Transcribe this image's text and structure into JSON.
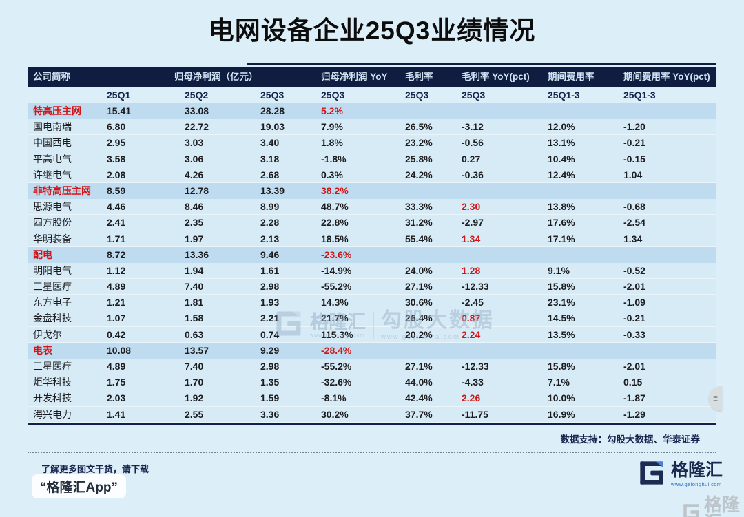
{
  "chart_data": {
    "type": "table",
    "title": "电网设备企业25Q3业绩情况",
    "group_headers": [
      "公司简称",
      "归母净利润（亿元）",
      "归母净利润 YoY",
      "毛利率",
      "毛利率 YoY(pct)",
      "期间费用率",
      "期间费用率 YoY(pct)"
    ],
    "sub_headers": [
      "25Q1",
      "25Q2",
      "25Q3",
      "25Q3",
      "25Q3",
      "25Q3",
      "25Q1-3",
      "25Q1-3"
    ],
    "rows": [
      {
        "name": "特高压主网",
        "section": true,
        "cells": [
          "15.41",
          "33.08",
          "28.28",
          "5.2%",
          "",
          "",
          "",
          ""
        ],
        "red": [
          3
        ]
      },
      {
        "name": "国电南瑞",
        "section": false,
        "cells": [
          "6.80",
          "22.72",
          "19.03",
          "7.9%",
          "26.5%",
          "-3.12",
          "12.0%",
          "-1.20"
        ],
        "red": []
      },
      {
        "name": "中国西电",
        "section": false,
        "cells": [
          "2.95",
          "3.03",
          "3.40",
          "1.8%",
          "23.2%",
          "-0.56",
          "13.1%",
          "-0.21"
        ],
        "red": []
      },
      {
        "name": "平高电气",
        "section": false,
        "cells": [
          "3.58",
          "3.06",
          "3.18",
          "-1.8%",
          "25.8%",
          "0.27",
          "10.4%",
          "-0.15"
        ],
        "red": []
      },
      {
        "name": "许继电气",
        "section": false,
        "cells": [
          "2.08",
          "4.26",
          "2.68",
          "0.3%",
          "24.2%",
          "-0.36",
          "12.4%",
          "1.04"
        ],
        "red": []
      },
      {
        "name": "非特高压主网",
        "section": true,
        "cells": [
          "8.59",
          "12.78",
          "13.39",
          "38.2%",
          "",
          "",
          "",
          ""
        ],
        "red": [
          3
        ]
      },
      {
        "name": "思源电气",
        "section": false,
        "cells": [
          "4.46",
          "8.46",
          "8.99",
          "48.7%",
          "33.3%",
          "2.30",
          "13.8%",
          "-0.68"
        ],
        "red": [
          5
        ]
      },
      {
        "name": "四方股份",
        "section": false,
        "cells": [
          "2.41",
          "2.35",
          "2.28",
          "22.8%",
          "31.2%",
          "-2.97",
          "17.6%",
          "-2.54"
        ],
        "red": []
      },
      {
        "name": "华明装备",
        "section": false,
        "cells": [
          "1.71",
          "1.97",
          "2.13",
          "18.5%",
          "55.4%",
          "1.34",
          "17.1%",
          "1.34"
        ],
        "red": [
          5
        ]
      },
      {
        "name": "配电",
        "section": true,
        "cells": [
          "8.72",
          "13.36",
          "9.46",
          "-23.6%",
          "",
          "",
          "",
          ""
        ],
        "red": [
          3
        ]
      },
      {
        "name": "明阳电气",
        "section": false,
        "cells": [
          "1.12",
          "1.94",
          "1.61",
          "-14.9%",
          "24.0%",
          "1.28",
          "9.1%",
          "-0.52"
        ],
        "red": [
          5
        ]
      },
      {
        "name": "三星医疗",
        "section": false,
        "cells": [
          "4.89",
          "7.40",
          "2.98",
          "-55.2%",
          "27.1%",
          "-12.33",
          "15.8%",
          "-2.01"
        ],
        "red": []
      },
      {
        "name": "东方电子",
        "section": false,
        "cells": [
          "1.21",
          "1.81",
          "1.93",
          "14.3%",
          "30.6%",
          "-2.45",
          "23.1%",
          "-1.09"
        ],
        "red": []
      },
      {
        "name": "金盘科技",
        "section": false,
        "cells": [
          "1.07",
          "1.58",
          "2.21",
          "21.7%",
          "26.4%",
          "0.87",
          "14.5%",
          "-0.21"
        ],
        "red": [
          5
        ]
      },
      {
        "name": "伊戈尔",
        "section": false,
        "cells": [
          "0.42",
          "0.63",
          "0.74",
          "115.3%",
          "20.2%",
          "2.24",
          "13.5%",
          "-0.33"
        ],
        "red": [
          5
        ]
      },
      {
        "name": "电表",
        "section": true,
        "cells": [
          "10.08",
          "13.57",
          "9.29",
          "-28.4%",
          "",
          "",
          "",
          ""
        ],
        "red": [
          3
        ]
      },
      {
        "name": "三星医疗",
        "section": false,
        "cells": [
          "4.89",
          "7.40",
          "2.98",
          "-55.2%",
          "27.1%",
          "-12.33",
          "15.8%",
          "-2.01"
        ],
        "red": []
      },
      {
        "name": "炬华科技",
        "section": false,
        "cells": [
          "1.75",
          "1.70",
          "1.35",
          "-32.6%",
          "44.0%",
          "-4.33",
          "7.1%",
          "0.15"
        ],
        "red": []
      },
      {
        "name": "开发科技",
        "section": false,
        "cells": [
          "2.03",
          "1.92",
          "1.59",
          "-8.1%",
          "42.4%",
          "2.26",
          "10.0%",
          "-1.87"
        ],
        "red": [
          5
        ]
      },
      {
        "name": "海兴电力",
        "section": false,
        "cells": [
          "1.41",
          "2.55",
          "3.36",
          "30.2%",
          "37.7%",
          "-11.75",
          "16.9%",
          "-1.29"
        ],
        "red": []
      }
    ]
  },
  "support_note": "数据支持：勾股大数据、华泰证券",
  "footer": {
    "promo_line": "了解更多图文干货，请下载",
    "app_badge": "“格隆汇App”",
    "brand": "格隆汇",
    "brand_url": "www.gelonghui.com"
  },
  "watermark": {
    "brand": "格隆汇",
    "brand_url": "www.gelonghui.com",
    "partner": "勾股大数据",
    "partner_url": "www.gogudata.com"
  },
  "colors": {
    "page_bg": "#dceef8",
    "header_bg": "#101d40",
    "header_text": "#cfe4f3",
    "section_row_bg": "#bedbf0",
    "row_bg": "#d7ebf7",
    "accent_red": "#d01616",
    "text_dark": "#1d1d1f",
    "navy_text": "#16254e"
  }
}
